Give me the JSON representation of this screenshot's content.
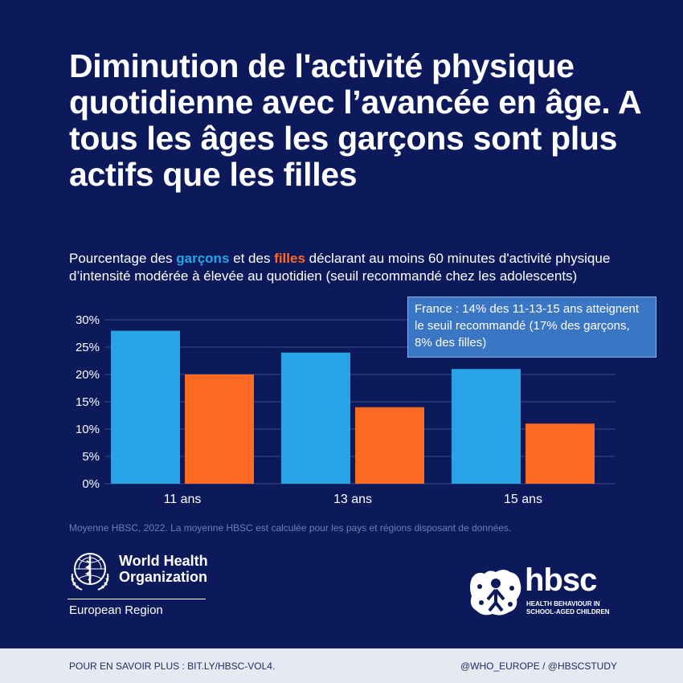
{
  "title": "Diminution de l'activité physique quotidienne avec l’avancée en âge. A tous les âges les garçons sont plus actifs que les filles",
  "subtitle": {
    "prefix": "Pourcentage des ",
    "boys_word": "garçons",
    "middle": " et des ",
    "girls_word": "filles",
    "suffix": " déclarant au moins 60 minutes d'activité physique d’intensité modérée à élevée au quotidien (seuil recommandé chez les adolescents)"
  },
  "callout": "France : 14% des 11-13-15 ans atteignent le seuil recommandé (17% des garçons, 8% des filles)",
  "source": "Moyenne HBSC, 2022. La moyenne HBSC est calculée pour les pays et régions disposant de données.",
  "who": {
    "name": "World Health Organization",
    "region": "European Region"
  },
  "hbsc": {
    "word": "hbsc",
    "tagline": "HEALTH BEHAVIOUR IN SCHOOL-AGED CHILDREN"
  },
  "footer": {
    "left": "POUR EN SAVOIR PLUS : BIT.LY/HBSC-VOL4.",
    "right": "@WHO_EUROPE / @HBSCSTUDY"
  },
  "colors": {
    "background": "#0c1a5c",
    "boys": "#27a3e6",
    "girls": "#ff6a22",
    "callout": "#3a76c3"
  },
  "chart_data": {
    "type": "bar",
    "categories": [
      "11 ans",
      "13 ans",
      "15 ans"
    ],
    "series": [
      {
        "name": "garçons",
        "values": [
          28,
          24,
          21
        ]
      },
      {
        "name": "filles",
        "values": [
          20,
          14,
          11
        ]
      }
    ],
    "ylim": [
      0,
      30
    ],
    "yticks": [
      "0%",
      "5%",
      "10%",
      "15%",
      "20%",
      "25%",
      "30%"
    ],
    "grid": true
  }
}
